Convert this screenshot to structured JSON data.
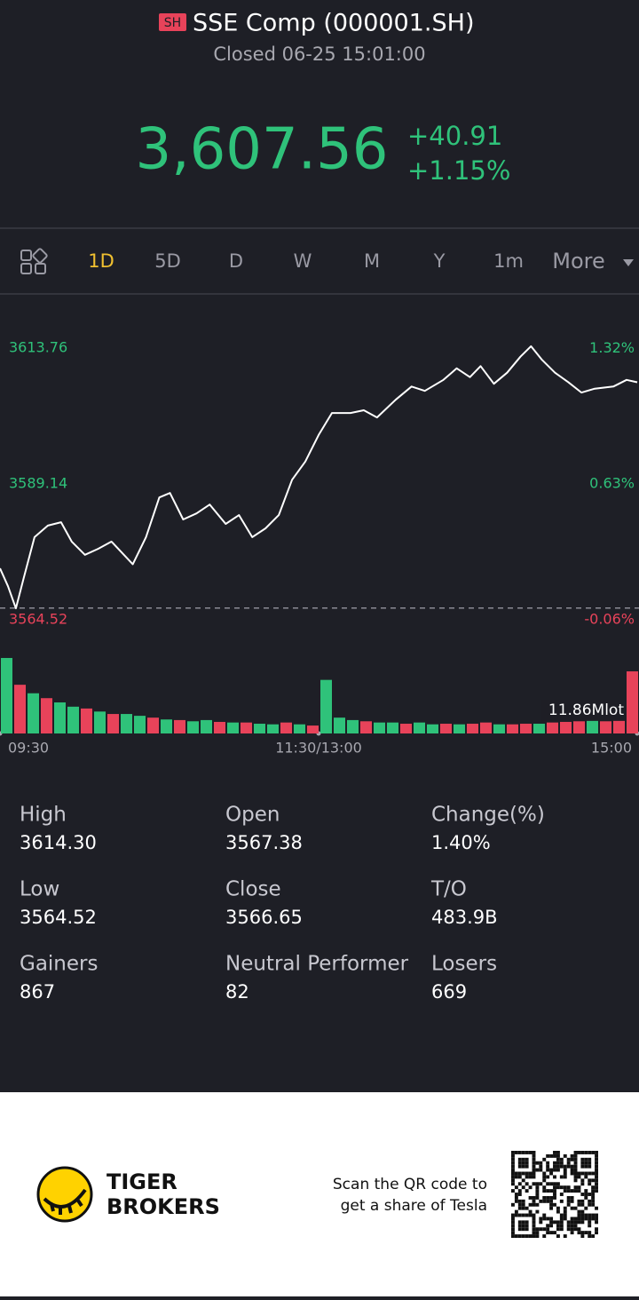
{
  "header": {
    "badge": "SH",
    "title": "SSE Comp (000001.SH)",
    "status": "Closed 06-25 15:01:00",
    "price": "3,607.56",
    "change": "+40.91",
    "change_pct": "+1.15%"
  },
  "tabs": [
    "1D",
    "5D",
    "D",
    "W",
    "M",
    "Y",
    "1m",
    "More"
  ],
  "chart_data": [
    {
      "type": "line",
      "color": "#ffffff",
      "up_color": "#2fc27a",
      "down_color": "#e8435a",
      "baseline": 3566.65,
      "x": [
        0,
        3,
        6,
        9,
        13,
        18,
        23,
        27,
        32,
        37,
        42,
        50,
        55,
        60,
        64,
        69,
        74,
        79,
        85,
        90,
        95,
        100,
        105,
        110,
        115,
        120,
        125,
        132,
        137,
        142,
        149,
        155,
        160,
        167,
        172,
        177,
        181,
        186,
        191,
        196,
        200,
        204,
        209,
        214,
        219,
        224,
        231,
        236,
        240
      ],
      "values": [
        3573.85,
        3570.6,
        3566.6,
        3572.2,
        3579.5,
        3581.6,
        3582.2,
        3578.7,
        3576.3,
        3577.4,
        3578.7,
        3574.6,
        3579.5,
        3586.7,
        3587.5,
        3582.7,
        3583.8,
        3585.4,
        3581.9,
        3583.5,
        3579.5,
        3581.1,
        3583.5,
        3589.9,
        3593.2,
        3598.0,
        3602.0,
        3602.0,
        3602.5,
        3601.2,
        3604.4,
        3606.8,
        3606.0,
        3608.0,
        3610.1,
        3608.5,
        3610.5,
        3607.3,
        3609.3,
        3612.2,
        3614.1,
        3611.7,
        3609.3,
        3607.6,
        3605.7,
        3606.4,
        3606.8,
        3608.0,
        3607.56
      ],
      "xlim": [
        0,
        240
      ],
      "xticks": [
        {
          "value": 0,
          "label": "09:30"
        },
        {
          "value": 120,
          "label": "11:30/13:00"
        },
        {
          "value": 240,
          "label": "15:00"
        }
      ],
      "ylim": [
        3559.37,
        3622.13
      ],
      "yticks": [
        3564.52,
        3589.14,
        3613.76
      ],
      "y2lim": [
        -0.204,
        1.556
      ],
      "y2ticks": [
        {
          "value": -0.06,
          "label": "-0.06%"
        },
        {
          "value": 0.63,
          "label": "0.63%"
        },
        {
          "value": 1.32,
          "label": "1.32%"
        }
      ]
    },
    {
      "type": "bar",
      "annotation": "11.86Mlot",
      "ylim": [
        0,
        14
      ],
      "values": [
        12.4,
        8.0,
        6.6,
        5.8,
        5.1,
        4.4,
        4.1,
        3.6,
        3.2,
        3.2,
        2.9,
        2.6,
        2.3,
        2.2,
        2.0,
        2.2,
        1.9,
        1.8,
        1.8,
        1.6,
        1.5,
        1.8,
        1.5,
        1.3,
        8.8,
        2.6,
        2.2,
        2.0,
        1.8,
        1.8,
        1.6,
        1.8,
        1.5,
        1.6,
        1.5,
        1.6,
        1.8,
        1.5,
        1.5,
        1.6,
        1.6,
        1.8,
        1.9,
        2.0,
        2.2,
        2.0,
        2.2,
        10.2
      ],
      "colors": [
        "#2fc27a",
        "#e8435a",
        "#2fc27a",
        "#e8435a",
        "#2fc27a",
        "#2fc27a",
        "#e8435a",
        "#2fc27a",
        "#e8435a",
        "#2fc27a",
        "#2fc27a",
        "#e8435a",
        "#2fc27a",
        "#e8435a",
        "#2fc27a",
        "#2fc27a",
        "#e8435a",
        "#2fc27a",
        "#e8435a",
        "#2fc27a",
        "#2fc27a",
        "#e8435a",
        "#2fc27a",
        "#e8435a",
        "#2fc27a",
        "#2fc27a",
        "#2fc27a",
        "#e8435a",
        "#2fc27a",
        "#2fc27a",
        "#e8435a",
        "#2fc27a",
        "#2fc27a",
        "#e8435a",
        "#2fc27a",
        "#e8435a",
        "#e8435a",
        "#2fc27a",
        "#e8435a",
        "#e8435a",
        "#2fc27a",
        "#e8435a",
        "#e8435a",
        "#e8435a",
        "#2fc27a",
        "#e8435a",
        "#e8435a",
        "#e8435a"
      ]
    }
  ],
  "stats": [
    {
      "label": "High",
      "value": "3614.30"
    },
    {
      "label": "Open",
      "value": "3567.38"
    },
    {
      "label": "Change(%)",
      "value": "1.40%"
    },
    {
      "label": "Low",
      "value": "3564.52"
    },
    {
      "label": "Close",
      "value": "3566.65"
    },
    {
      "label": "T/O",
      "value": "483.9B"
    },
    {
      "label": "Gainers",
      "value": "867"
    },
    {
      "label": "Neutral Performer",
      "value": "82"
    },
    {
      "label": "Losers",
      "value": "669"
    }
  ],
  "footer": {
    "brand": [
      "TIGER",
      "BROKERS"
    ],
    "promo": [
      "Scan the QR code to",
      "get a share of Tesla"
    ]
  }
}
